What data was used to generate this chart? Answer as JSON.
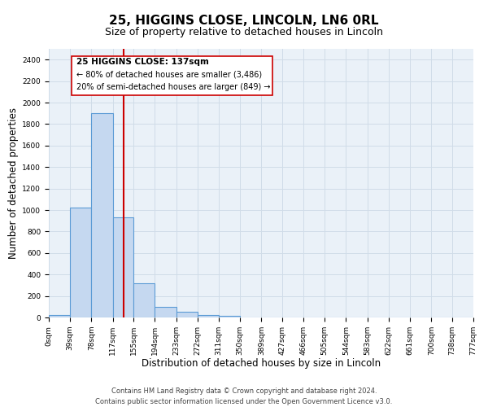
{
  "title": "25, HIGGINS CLOSE, LINCOLN, LN6 0RL",
  "subtitle": "Size of property relative to detached houses in Lincoln",
  "xlabel": "Distribution of detached houses by size in Lincoln",
  "ylabel": "Number of detached properties",
  "bar_edges": [
    0,
    39,
    78,
    117,
    155,
    194,
    233,
    272,
    311,
    350,
    389,
    427,
    466,
    505,
    544,
    583,
    622,
    661,
    700,
    738,
    777
  ],
  "bar_heights": [
    25,
    1025,
    1900,
    930,
    320,
    100,
    50,
    25,
    15,
    0,
    0,
    0,
    0,
    0,
    0,
    0,
    0,
    0,
    0,
    0
  ],
  "bar_color": "#c5d8f0",
  "bar_edge_color": "#5b9bd5",
  "bar_linewidth": 0.8,
  "vline_x": 137,
  "vline_color": "#cc0000",
  "vline_linewidth": 1.5,
  "annotation_title": "25 HIGGINS CLOSE: 137sqm",
  "annotation_line1": "← 80% of detached houses are smaller (3,486)",
  "annotation_line2": "20% of semi-detached houses are larger (849) →",
  "annotation_box_color": "#ffffff",
  "annotation_box_edgecolor": "#cc0000",
  "ylim": [
    0,
    2500
  ],
  "xlim": [
    0,
    777
  ],
  "tick_labels": [
    "0sqm",
    "39sqm",
    "78sqm",
    "117sqm",
    "155sqm",
    "194sqm",
    "233sqm",
    "272sqm",
    "311sqm",
    "350sqm",
    "389sqm",
    "427sqm",
    "466sqm",
    "505sqm",
    "544sqm",
    "583sqm",
    "622sqm",
    "661sqm",
    "700sqm",
    "738sqm",
    "777sqm"
  ],
  "tick_positions": [
    0,
    39,
    78,
    117,
    155,
    194,
    233,
    272,
    311,
    350,
    389,
    427,
    466,
    505,
    544,
    583,
    622,
    661,
    700,
    738,
    777
  ],
  "yticks": [
    0,
    200,
    400,
    600,
    800,
    1000,
    1200,
    1400,
    1600,
    1800,
    2000,
    2200,
    2400
  ],
  "grid_color": "#d0dce8",
  "background_color": "#eaf1f8",
  "footer_line1": "Contains HM Land Registry data © Crown copyright and database right 2024.",
  "footer_line2": "Contains public sector information licensed under the Open Government Licence v3.0.",
  "title_fontsize": 11,
  "subtitle_fontsize": 9,
  "xlabel_fontsize": 8.5,
  "ylabel_fontsize": 8.5,
  "tick_fontsize": 6.5,
  "footer_fontsize": 6
}
